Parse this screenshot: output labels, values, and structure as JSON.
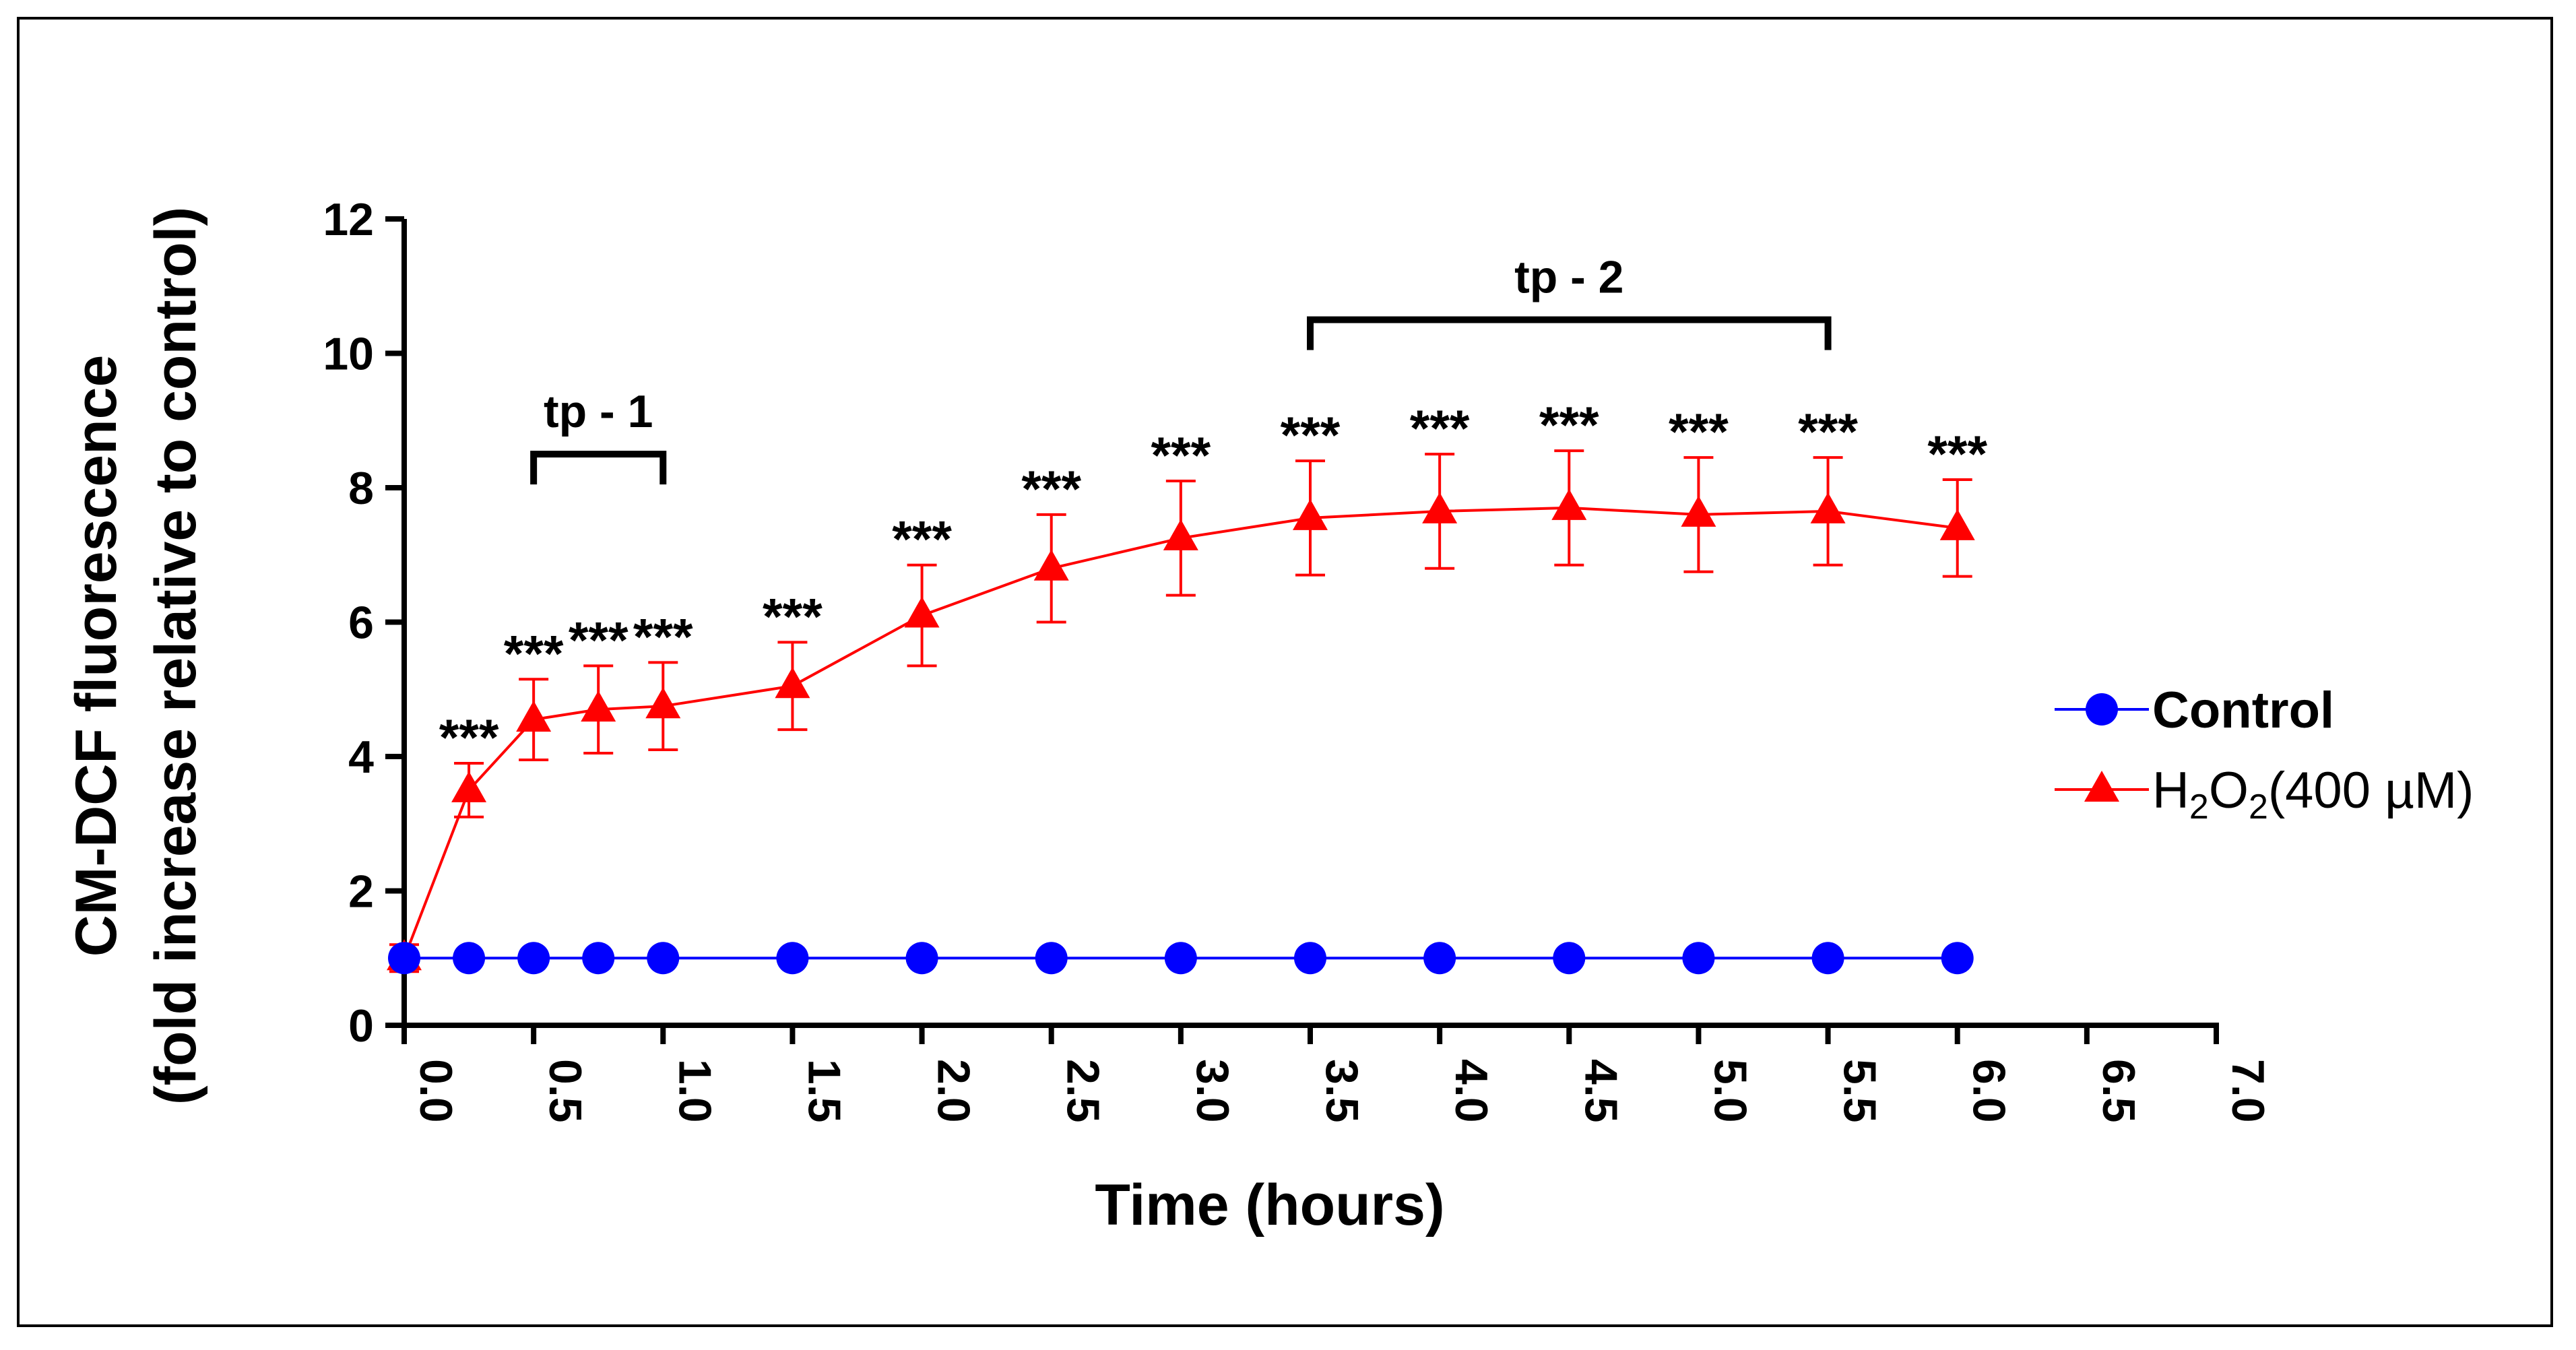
{
  "chart_data": {
    "type": "line",
    "title": "",
    "xlabel": "Time (hours)",
    "ylabel_line1": "CM-DCF fluorescence",
    "ylabel_line2": "(fold increase relative to control)",
    "xlim": [
      0,
      7
    ],
    "ylim": [
      0,
      12
    ],
    "xticks": [
      "0.0",
      "0.5",
      "1.0",
      "1.5",
      "2.0",
      "2.5",
      "3.0",
      "3.5",
      "4.0",
      "4.5",
      "5.0",
      "5.5",
      "6.0",
      "6.5",
      "7.0"
    ],
    "yticks": [
      "0",
      "2",
      "4",
      "6",
      "8",
      "10",
      "12"
    ],
    "series": [
      {
        "name": "Control",
        "color": "#0000ff",
        "marker": "circle",
        "x": [
          0,
          0.25,
          0.5,
          0.75,
          1.0,
          1.5,
          2.0,
          2.5,
          3.0,
          3.5,
          4.0,
          4.5,
          5.0,
          5.5,
          6.0
        ],
        "y": [
          1,
          1,
          1,
          1,
          1,
          1,
          1,
          1,
          1,
          1,
          1,
          1,
          1,
          1,
          1
        ],
        "err": [
          0,
          0,
          0,
          0,
          0,
          0,
          0,
          0,
          0,
          0,
          0,
          0,
          0,
          0,
          0
        ]
      },
      {
        "name": "H2O2(400 µM)",
        "color": "#ff0000",
        "marker": "triangle",
        "x": [
          0,
          0.25,
          0.5,
          0.75,
          1.0,
          1.5,
          2.0,
          2.5,
          3.0,
          3.5,
          4.0,
          4.5,
          5.0,
          5.5,
          6.0
        ],
        "y": [
          1.0,
          3.5,
          4.55,
          4.7,
          4.75,
          5.05,
          6.1,
          6.8,
          7.25,
          7.55,
          7.65,
          7.7,
          7.6,
          7.65,
          7.4
        ],
        "err": [
          0.2,
          0.4,
          0.6,
          0.65,
          0.65,
          0.65,
          0.75,
          0.8,
          0.85,
          0.85,
          0.85,
          0.85,
          0.85,
          0.8,
          0.72
        ]
      }
    ],
    "significance": [
      {
        "x": 0.25,
        "text": "***"
      },
      {
        "x": 0.5,
        "text": "***"
      },
      {
        "x": 0.75,
        "text": "***"
      },
      {
        "x": 1.0,
        "text": "***"
      },
      {
        "x": 1.5,
        "text": "***"
      },
      {
        "x": 2.0,
        "text": "***"
      },
      {
        "x": 2.5,
        "text": "***"
      },
      {
        "x": 3.0,
        "text": "***"
      },
      {
        "x": 3.5,
        "text": "***"
      },
      {
        "x": 4.0,
        "text": "***"
      },
      {
        "x": 4.5,
        "text": "***"
      },
      {
        "x": 5.0,
        "text": "***"
      },
      {
        "x": 5.5,
        "text": "***"
      },
      {
        "x": 6.0,
        "text": "***"
      }
    ],
    "brackets": [
      {
        "label": "tp - 1",
        "x_start": 0.5,
        "x_end": 1.0,
        "y": 8.5
      },
      {
        "label": "tp - 2",
        "x_start": 3.5,
        "x_end": 5.5,
        "y": 10.5
      }
    ],
    "legend": {
      "position": "right",
      "items": [
        {
          "label": "Control",
          "bold": true
        },
        {
          "label_main": "H",
          "sub1": "2",
          "mid": "O",
          "sub2": "2",
          "suffix": "(400 µM)"
        }
      ]
    }
  }
}
